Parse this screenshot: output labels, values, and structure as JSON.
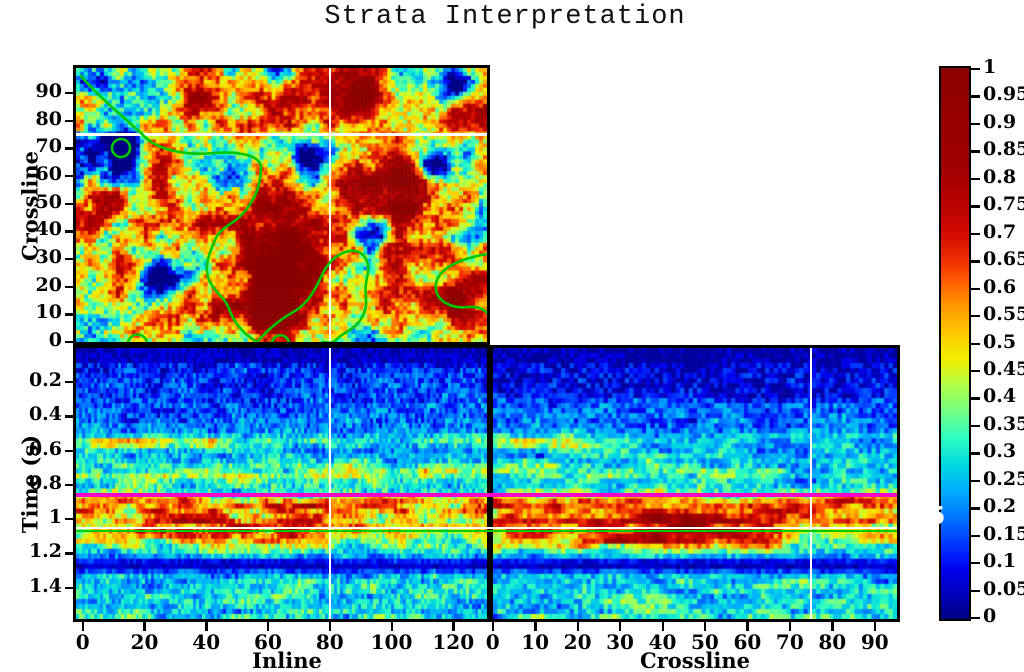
{
  "title": "Strata Interpretation",
  "map_view": {
    "ylabel": "Crossline",
    "ytick_labels": [
      "0",
      "10",
      "20",
      "30",
      "40",
      "50",
      "60",
      "70",
      "80",
      "90"
    ],
    "inline_range": [
      0,
      130
    ],
    "crossline_range": [
      0,
      97
    ],
    "crosshair": {
      "inline": 80,
      "crossline": 75
    },
    "contour_color": "#00C800",
    "contour_paths": [
      "M 5,8 C 20,26 42,44 66,66",
      "M 54,80 A 9,9 0 1 1 36,80 A 9,9 0 1 1 54,80",
      "M 66,66 C 78,80 104,88 138,85 C 166,83 186,88 185,101 C 184,116 181,128 170,142 C 158,157 145,158 139,172 C 131,190 128,202 134,214 C 140,226 149,229 153,241 C 159,257 169,267 181,274",
      "M 181,274 C 196,257 207,250 219,243 C 232,235 239,222 245,209 C 251,195 261,185 274,183 C 289,181 295,196 291,210 C 287,225 293,233 288,245 C 282,261 269,263 261,271 C 255,277 250,274 247,274",
      "M 411,186 C 382,191 362,201 360,216 C 358,232 374,241 392,239 C 401,238 408,241 411,245",
      "M 52,274 C 55,264 68,264 71,274 M 196,274 C 199,265 210,265 213,274"
    ]
  },
  "inline_section": {
    "xlabel": "Inline",
    "xtick_labels": [
      "0",
      "20",
      "40",
      "60",
      "80",
      "100",
      "120"
    ],
    "ylabel": "Time (s)",
    "ytick_labels": [
      "0.2",
      "0.4",
      "0.6",
      "0.8",
      "1",
      "1.2",
      "1.4"
    ],
    "time_range": [
      0,
      1.58
    ],
    "inline_range": [
      0,
      130
    ],
    "crosshair_inline": 80
  },
  "crossline_section": {
    "xlabel": "Crossline",
    "xtick_labels": [
      "0",
      "10",
      "20",
      "30",
      "40",
      "50",
      "60",
      "70",
      "80",
      "90"
    ],
    "time_range": [
      0,
      1.58
    ],
    "crossline_range": [
      0,
      95
    ],
    "crosshair_crossline": 75
  },
  "horizons": {
    "magenta": {
      "time": 0.86,
      "color": "#FF00CC"
    },
    "white_slice": {
      "time": 1.05,
      "color": "#FFFFFF"
    },
    "green": {
      "time": 1.07,
      "color": "#00CC00"
    }
  },
  "colorbar": {
    "tick_labels": [
      "1",
      "0.95",
      "0.9",
      "0.85",
      "0.8",
      "0.75",
      "0.7",
      "0.65",
      "0.6",
      "0.55",
      "0.5",
      "0.45",
      "0.4",
      "0.35",
      "0.3",
      "0.25",
      "0.2",
      "0.15",
      "0.1",
      "0.05",
      "0"
    ],
    "value_range": [
      0,
      1
    ],
    "stray_label": "5",
    "colormap_stops": [
      [
        0.0,
        "#000085"
      ],
      [
        0.04,
        "#0000B4"
      ],
      [
        0.09,
        "#0000F0"
      ],
      [
        0.13,
        "#0030FF"
      ],
      [
        0.18,
        "#0070FF"
      ],
      [
        0.23,
        "#00AAFF"
      ],
      [
        0.28,
        "#00D8E0"
      ],
      [
        0.33,
        "#30FFC0"
      ],
      [
        0.38,
        "#78FF80"
      ],
      [
        0.43,
        "#B8FF40"
      ],
      [
        0.47,
        "#F0F000"
      ],
      [
        0.52,
        "#FFC800"
      ],
      [
        0.57,
        "#FF9600"
      ],
      [
        0.61,
        "#FF6000"
      ],
      [
        0.65,
        "#F03000"
      ],
      [
        0.69,
        "#D80F00"
      ],
      [
        0.74,
        "#BC0300"
      ],
      [
        0.82,
        "#A00000"
      ],
      [
        1.0,
        "#8B0000"
      ]
    ]
  },
  "chart_data": [
    {
      "type": "heatmap",
      "name": "time-slice-map",
      "xlabel": "Inline",
      "ylabel": "Crossline",
      "x_range": [
        0,
        130
      ],
      "y_range": [
        0,
        97
      ],
      "value_range": [
        0,
        1
      ],
      "colormap": "jet-like (blue-cyan-yellow-red-darkred)",
      "overlays": [
        "white crosshair at inline=80 and crossline=75",
        "green contour lines"
      ],
      "anomalies": [
        [
          68,
          33,
          24,
          0.75
        ],
        [
          103,
          57,
          17,
          0.55
        ],
        [
          58,
          12,
          14,
          0.45
        ],
        [
          118,
          14,
          10,
          0.4
        ],
        [
          8,
          50,
          9,
          0.35
        ],
        [
          88,
          92,
          11,
          0.4
        ],
        [
          38,
          88,
          8,
          0.3
        ],
        [
          13,
          68,
          11,
          -0.6
        ],
        [
          95,
          40,
          7,
          -0.65
        ],
        [
          114,
          64,
          8,
          -0.6
        ],
        [
          25,
          22,
          9,
          -0.35
        ],
        [
          122,
          92,
          9,
          -0.5
        ],
        [
          3,
          93,
          5,
          -0.4
        ],
        [
          74,
          66,
          7,
          -0.4
        ],
        [
          48,
          62,
          10,
          -0.35
        ]
      ]
    },
    {
      "type": "heatmap",
      "name": "inline-vertical-section",
      "xlabel": "Inline",
      "ylabel": "Time (s)",
      "x_range": [
        0,
        130
      ],
      "y_range": [
        0,
        1.58
      ],
      "value_range": [
        0,
        1
      ],
      "overlays": [
        "white crosshair at inline=80",
        "magenta horizon at t=0.86",
        "white slice line at t=1.05",
        "green horizon at t=1.07"
      ],
      "time_amplitude_profile": [
        [
          0,
          0.05
        ],
        [
          0.07,
          0.06
        ],
        [
          0.12,
          0.12
        ],
        [
          0.22,
          0.13
        ],
        [
          0.32,
          0.14
        ],
        [
          0.42,
          0.17
        ],
        [
          0.5,
          0.22
        ],
        [
          0.55,
          0.3
        ],
        [
          0.6,
          0.22
        ],
        [
          0.66,
          0.25
        ],
        [
          0.73,
          0.33
        ],
        [
          0.79,
          0.27
        ],
        [
          0.84,
          0.33
        ],
        [
          0.88,
          0.52
        ],
        [
          0.92,
          0.6
        ],
        [
          0.97,
          0.5
        ],
        [
          1.02,
          0.48
        ],
        [
          1.08,
          0.46
        ],
        [
          1.14,
          0.4
        ],
        [
          1.2,
          0.3
        ],
        [
          1.27,
          0.13
        ],
        [
          1.33,
          0.26
        ],
        [
          1.45,
          0.28
        ],
        [
          1.58,
          0.3
        ]
      ]
    },
    {
      "type": "heatmap",
      "name": "crossline-vertical-section",
      "xlabel": "Crossline",
      "ylabel": "Time (s)",
      "x_range": [
        0,
        95
      ],
      "y_range": [
        0,
        1.58
      ],
      "value_range": [
        0,
        1
      ],
      "overlays": [
        "white crosshair at crossline=75",
        "magenta horizon at t=0.86",
        "white slice line at t=1.05",
        "green horizon at t=1.07"
      ],
      "strong_reflectors": [
        {
          "time": 1.02,
          "crossline_center": 38,
          "crossline_halfwidth": 22,
          "strength": 0.4
        },
        {
          "time": 1.13,
          "crossline_center": 45,
          "crossline_halfwidth": 18,
          "strength": 0.33
        }
      ],
      "quiet_zone": "dark navy above t=0.30 with V-shaped notch near crossline 44"
    }
  ]
}
